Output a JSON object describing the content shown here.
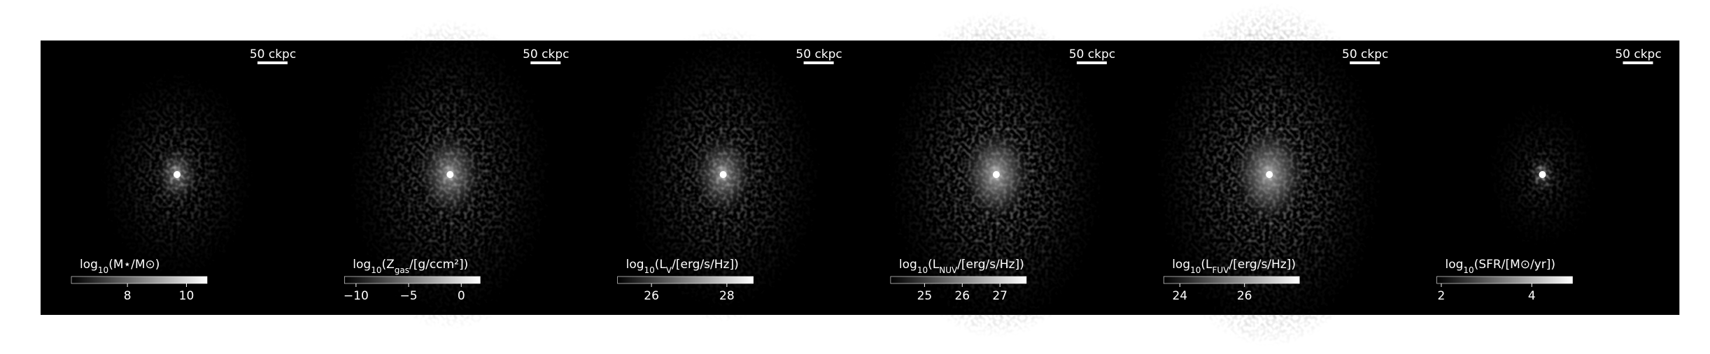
{
  "panels": [
    {
      "scale_bar": "50 ckpc",
      "label": [
        {
          "text": "log"
        },
        {
          "text": "10",
          "sub": true
        },
        {
          "text": "(M⋆/M⊙)"
        }
      ],
      "clim": [
        6.1,
        10.7
      ],
      "ticks": [
        8,
        10
      ]
    },
    {
      "scale_bar": "50 ckpc",
      "label": [
        {
          "text": "log"
        },
        {
          "text": "10",
          "sub": true
        },
        {
          "text": "(Z"
        },
        {
          "text": "gas",
          "sub": true
        },
        {
          "text": "/[g/ccm²])"
        }
      ],
      "clim": [
        -11.1,
        1.8
      ],
      "ticks": [
        {
          "value": -10,
          "label": "−10"
        },
        {
          "value": -5,
          "label": "−5"
        },
        0
      ]
    },
    {
      "scale_bar": "50 ckpc",
      "label": [
        {
          "text": "log"
        },
        {
          "text": "10",
          "sub": true
        },
        {
          "text": "(L"
        },
        {
          "text": "V",
          "sub": true
        },
        {
          "text": "/[erg/s/Hz])"
        }
      ],
      "clim": [
        25.1,
        28.7
      ],
      "ticks": [
        26,
        28
      ]
    },
    {
      "scale_bar": "50 ckpc",
      "label": [
        {
          "text": "log"
        },
        {
          "text": "10",
          "sub": true
        },
        {
          "text": "(L"
        },
        {
          "text": "NUV",
          "sub": true
        },
        {
          "text": "/[erg/s/Hz])"
        }
      ],
      "clim": [
        24.1,
        27.7
      ],
      "ticks": [
        25,
        26,
        27
      ]
    },
    {
      "scale_bar": "50 ckpc",
      "label": [
        {
          "text": "log"
        },
        {
          "text": "10",
          "sub": true
        },
        {
          "text": "(L"
        },
        {
          "text": "FUV",
          "sub": true
        },
        {
          "text": "/[erg/s/Hz])"
        }
      ],
      "clim": [
        23.5,
        27.7
      ],
      "ticks": [
        24,
        26
      ]
    },
    {
      "scale_bar": "50 ckpc",
      "label": [
        {
          "text": "log"
        },
        {
          "text": "10",
          "sub": true
        },
        {
          "text": "(SFR/[M⊙/yr])"
        }
      ],
      "clim": [
        1.9,
        4.9
      ],
      "ticks": [
        2,
        4
      ]
    }
  ]
}
